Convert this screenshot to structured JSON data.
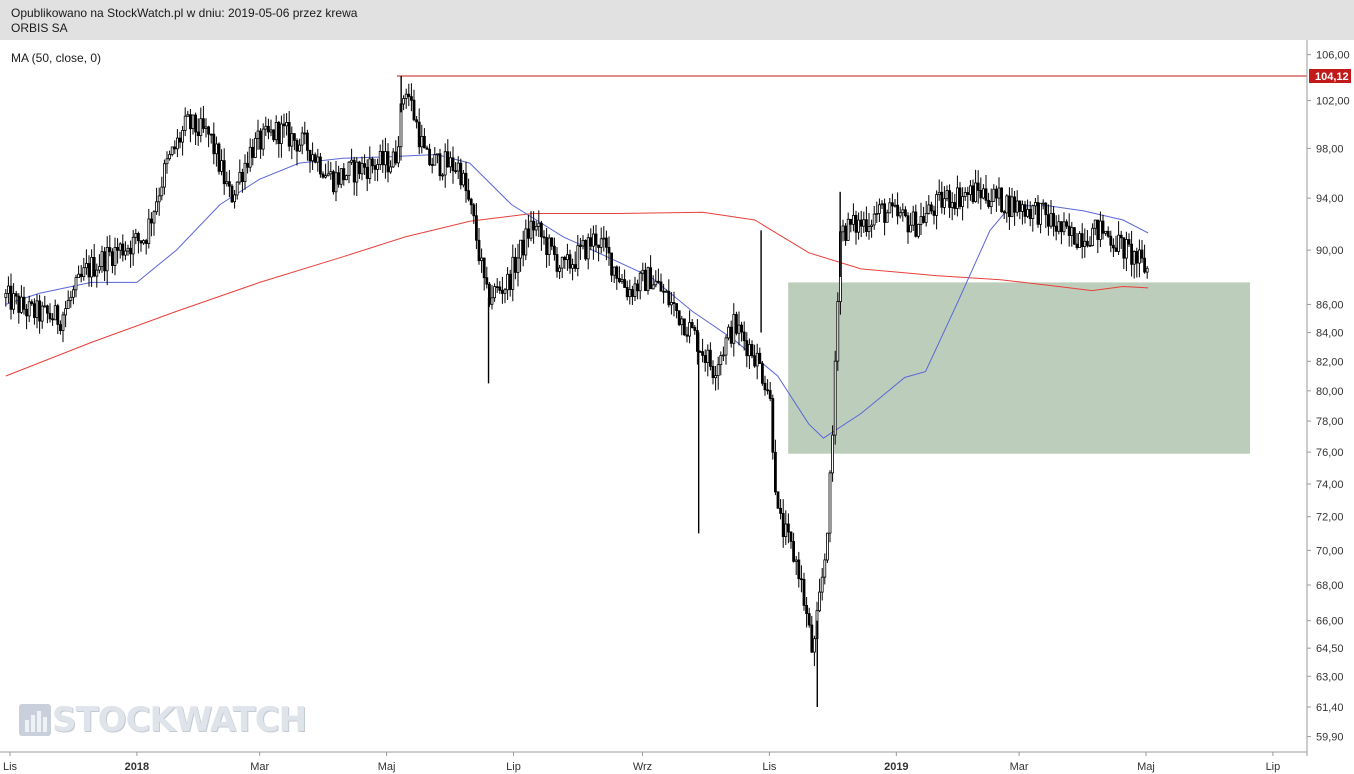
{
  "header": {
    "published_line": "Opublikowano na StockWatch.pl w dniu: 2019-05-06 przez krewa",
    "instrument": "ORBIS SA"
  },
  "indicator": {
    "label": "MA (50, close, 0)"
  },
  "watermark": {
    "text": "STOCKWATCH"
  },
  "colors": {
    "candles": "#000000",
    "ma50": "#5a66d9",
    "ma200": "#e8403a",
    "resistance": "#c21a1a",
    "zone": "#a7bca4",
    "header_bg": "#e1e1e1"
  },
  "chart_data": {
    "type": "candlestick",
    "title": "ORBIS SA",
    "y_axis": {
      "scale": "log",
      "ticks": [
        "106,00",
        "102,00",
        "98,00",
        "94,00",
        "90,00",
        "86,00",
        "84,00",
        "82,00",
        "80,00",
        "78,00",
        "76,00",
        "74,00",
        "72,00",
        "70,00",
        "68,00",
        "66,00",
        "64,50",
        "63,00",
        "61,40",
        "59,90"
      ],
      "side": "right"
    },
    "x_axis": {
      "ticks": [
        {
          "label": "Lis",
          "bold": false
        },
        {
          "label": "2018",
          "bold": true
        },
        {
          "label": "Mar",
          "bold": false
        },
        {
          "label": "Maj",
          "bold": false
        },
        {
          "label": "Lip",
          "bold": false
        },
        {
          "label": "Wrz",
          "bold": false
        },
        {
          "label": "Lis",
          "bold": false
        },
        {
          "label": "2019",
          "bold": true
        },
        {
          "label": "Mar",
          "bold": false
        },
        {
          "label": "Maj",
          "bold": false
        },
        {
          "label": "Lip",
          "bold": false
        }
      ]
    },
    "resistance_level": {
      "value": 104.12,
      "label": "104,12"
    },
    "support_zone": {
      "from": "2018-11-10",
      "to": "2019-06-20",
      "low": 75.9,
      "high": 87.6
    },
    "close_series": {
      "points": [
        [
          "2017-10-30",
          86.5
        ],
        [
          "2017-11-10",
          85.5
        ],
        [
          "2017-11-25",
          85.0
        ],
        [
          "2017-12-08",
          88.5
        ],
        [
          "2017-12-20",
          89.8
        ],
        [
          "2018-01-05",
          91.0
        ],
        [
          "2018-01-15",
          96.5
        ],
        [
          "2018-01-25",
          100.0
        ],
        [
          "2018-02-05",
          99.0
        ],
        [
          "2018-02-15",
          94.0
        ],
        [
          "2018-02-25",
          98.0
        ],
        [
          "2018-03-10",
          99.5
        ],
        [
          "2018-03-25",
          98.0
        ],
        [
          "2018-04-05",
          95.5
        ],
        [
          "2018-04-20",
          96.5
        ],
        [
          "2018-05-05",
          97.0
        ],
        [
          "2018-05-10",
          103.5
        ],
        [
          "2018-05-20",
          97.0
        ],
        [
          "2018-06-05",
          96.5
        ],
        [
          "2018-06-12",
          92.0
        ],
        [
          "2018-06-18",
          86.5
        ],
        [
          "2018-06-28",
          87.5
        ],
        [
          "2018-07-10",
          92.0
        ],
        [
          "2018-07-25",
          88.5
        ],
        [
          "2018-08-10",
          91.0
        ],
        [
          "2018-08-25",
          87.0
        ],
        [
          "2018-09-05",
          88.0
        ],
        [
          "2018-09-15",
          86.0
        ],
        [
          "2018-09-25",
          84.0
        ],
        [
          "2018-10-05",
          81.5
        ],
        [
          "2018-10-15",
          84.5
        ],
        [
          "2018-10-25",
          82.5
        ],
        [
          "2018-11-01",
          80.0
        ],
        [
          "2018-11-05",
          72.0
        ],
        [
          "2018-11-15",
          69.0
        ],
        [
          "2018-11-22",
          64.0
        ],
        [
          "2018-11-28",
          70.0
        ],
        [
          "2018-12-01",
          75.5
        ],
        [
          "2018-12-05",
          91.5
        ],
        [
          "2018-12-15",
          92.0
        ],
        [
          "2018-12-25",
          93.0
        ],
        [
          "2019-01-10",
          92.0
        ],
        [
          "2019-01-25",
          94.0
        ],
        [
          "2019-02-10",
          94.5
        ],
        [
          "2019-02-25",
          93.5
        ],
        [
          "2019-03-10",
          93.0
        ],
        [
          "2019-03-25",
          91.0
        ],
        [
          "2019-04-10",
          91.5
        ],
        [
          "2019-04-25",
          89.5
        ],
        [
          "2019-05-02",
          88.5
        ]
      ]
    },
    "series": [
      {
        "id": "ma50",
        "points": [
          [
            "2017-10-30",
            86.0
          ],
          [
            "2017-11-15",
            86.8
          ],
          [
            "2017-12-10",
            87.6
          ],
          [
            "2018-01-01",
            87.6
          ],
          [
            "2018-01-20",
            90.0
          ],
          [
            "2018-02-10",
            93.5
          ],
          [
            "2018-03-01",
            95.5
          ],
          [
            "2018-03-20",
            96.8
          ],
          [
            "2018-04-10",
            97.2
          ],
          [
            "2018-05-01",
            97.3
          ],
          [
            "2018-05-25",
            97.5
          ],
          [
            "2018-06-10",
            96.8
          ],
          [
            "2018-06-30",
            93.5
          ],
          [
            "2018-07-25",
            91.0
          ],
          [
            "2018-08-15",
            89.5
          ],
          [
            "2018-09-05",
            88.0
          ],
          [
            "2018-09-25",
            85.5
          ],
          [
            "2018-10-15",
            83.5
          ],
          [
            "2018-11-05",
            81.0
          ],
          [
            "2018-11-20",
            77.8
          ],
          [
            "2018-11-27",
            76.9
          ],
          [
            "2018-12-15",
            78.5
          ],
          [
            "2019-01-05",
            80.9
          ],
          [
            "2019-01-15",
            81.3
          ],
          [
            "2019-01-30",
            86.0
          ],
          [
            "2019-02-15",
            91.5
          ],
          [
            "2019-02-25",
            93.4
          ],
          [
            "2019-03-15",
            93.4
          ],
          [
            "2019-04-01",
            93.0
          ],
          [
            "2019-04-20",
            92.3
          ],
          [
            "2019-05-02",
            91.3
          ]
        ]
      },
      {
        "id": "ma200",
        "points": [
          [
            "2017-10-30",
            81.0
          ],
          [
            "2017-12-10",
            83.3
          ],
          [
            "2018-01-20",
            85.5
          ],
          [
            "2018-03-01",
            87.6
          ],
          [
            "2018-04-10",
            89.5
          ],
          [
            "2018-05-10",
            91.0
          ],
          [
            "2018-06-10",
            92.2
          ],
          [
            "2018-07-10",
            92.8
          ],
          [
            "2018-08-20",
            92.8
          ],
          [
            "2018-09-30",
            92.9
          ],
          [
            "2018-10-25",
            92.3
          ],
          [
            "2018-11-20",
            89.8
          ],
          [
            "2018-12-15",
            88.6
          ],
          [
            "2019-01-20",
            88.1
          ],
          [
            "2019-02-20",
            87.8
          ],
          [
            "2019-03-20",
            87.3
          ],
          [
            "2019-04-05",
            87.0
          ],
          [
            "2019-04-20",
            87.3
          ],
          [
            "2019-05-02",
            87.2
          ]
        ]
      }
    ]
  }
}
